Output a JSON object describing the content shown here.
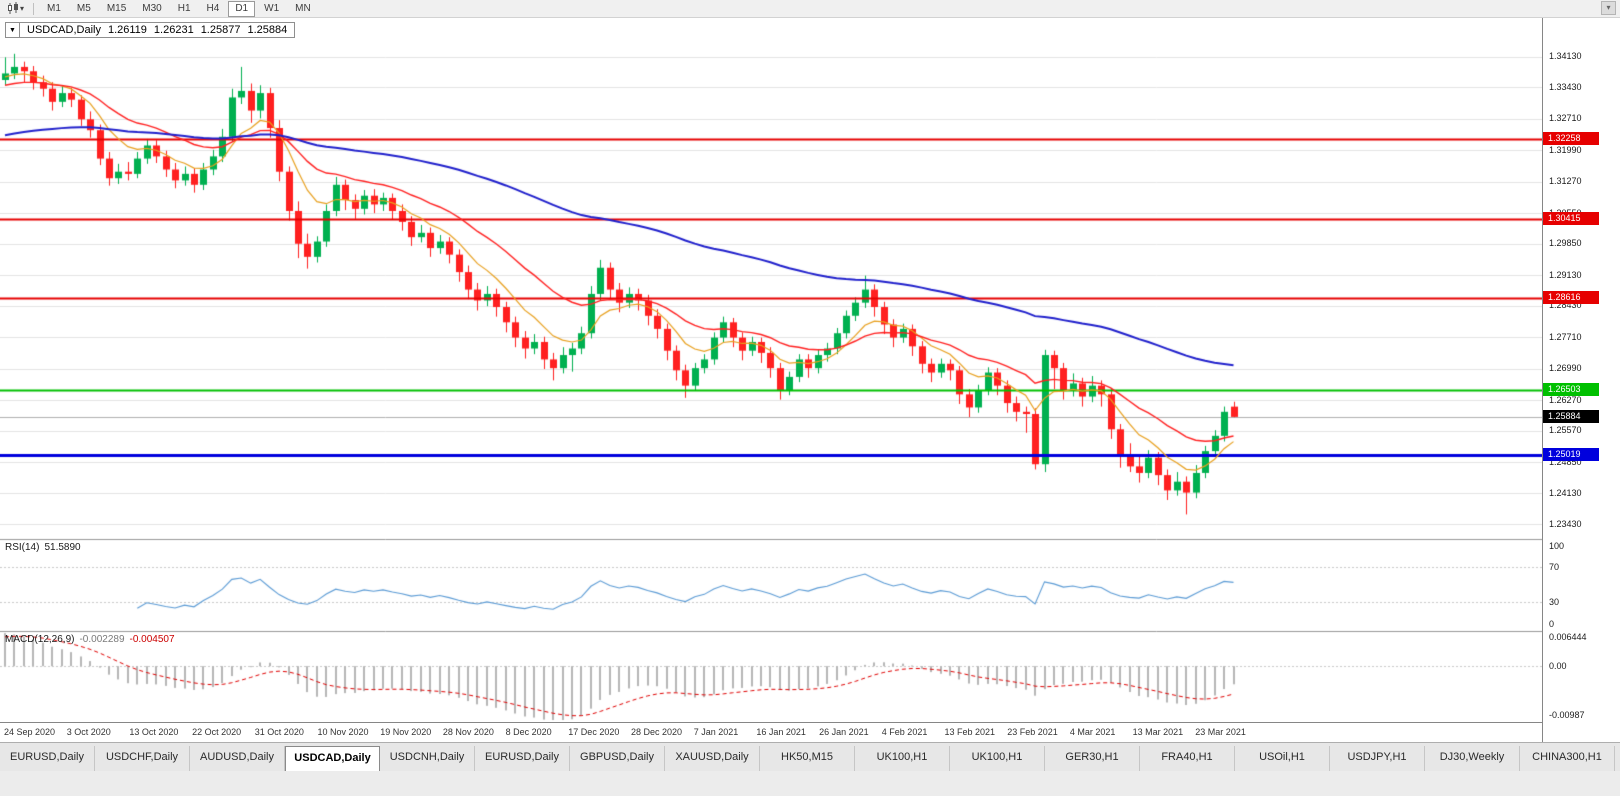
{
  "icons": {
    "dropdown_arrow": "▾",
    "dropdown_arrow_small": "▼",
    "scroll_marker": "▾"
  },
  "toolbar": {
    "timeframes": [
      "M1",
      "M5",
      "M15",
      "M30",
      "H1",
      "H4",
      "D1",
      "W1",
      "MN"
    ],
    "active": "D1"
  },
  "header": {
    "symbol": "USDCAD,Daily",
    "open": "1.26119",
    "high": "1.26231",
    "low": "1.25877",
    "close": "1.25884"
  },
  "panels": {
    "rsi": {
      "name": "RSI(14)",
      "value": "51.5890",
      "levels": [
        "100",
        "70",
        "30",
        "0"
      ]
    },
    "macd": {
      "name": "MACD(12,26,9)",
      "value_main": "-0.002289",
      "value_signal": "-0.004507",
      "axis": [
        "0.006444",
        "0.00",
        "-0.00987"
      ]
    }
  },
  "tabs": {
    "active_index": 3,
    "items": [
      "EURUSD,Daily",
      "USDCHF,Daily",
      "AUDUSD,Daily",
      "USDCAD,Daily",
      "USDCNH,Daily",
      "EURUSD,Daily",
      "GBPUSD,Daily",
      "XAUUSD,Daily",
      "HK50,M15",
      "UK100,H1",
      "UK100,H1",
      "GER30,H1",
      "FRA40,H1",
      "USOil,H1",
      "USDJPY,H1",
      "DJ30,Weekly",
      "CHINA300,H1"
    ]
  },
  "chart_data": {
    "type": "candlestick",
    "title": "USDCAD,Daily",
    "price_range": [
      1.2311,
      1.3502
    ],
    "y_ticks": [
      "1.34130",
      "1.33430",
      "1.32710",
      "1.31990",
      "1.31270",
      "1.30550",
      "1.29850",
      "1.29130",
      "1.28430",
      "1.27710",
      "1.26990",
      "1.26270",
      "1.25570",
      "1.24850",
      "1.24130",
      "1.23430"
    ],
    "x_ticks": [
      "24 Sep 2020",
      "3 Oct 2020",
      "13 Oct 2020",
      "22 Oct 2020",
      "31 Oct 2020",
      "10 Nov 2020",
      "19 Nov 2020",
      "28 Nov 2020",
      "8 Dec 2020",
      "17 Dec 2020",
      "28 Dec 2020",
      "7 Jan 2021",
      "16 Jan 2021",
      "26 Jan 2021",
      "4 Feb 2021",
      "13 Feb 2021",
      "23 Feb 2021",
      "4 Mar 2021",
      "13 Mar 2021",
      "23 Mar 2021"
    ],
    "layout": {
      "x_tick_start": 4,
      "x_tick_spacing": 62.7,
      "candle_start": 5,
      "candle_spacing": 9.45,
      "grid": "horizontal"
    },
    "colors": {
      "up": "#00b050",
      "down": "#ff2020",
      "grid": "#e4e4e4",
      "bg": "#ffffff",
      "current_line": "#b0b0b0"
    },
    "hlines": [
      {
        "value": 1.32258,
        "color": "#e60000",
        "width": 2
      },
      {
        "value": 1.30415,
        "color": "#e60000",
        "width": 2
      },
      {
        "value": 1.28616,
        "color": "#e60000",
        "width": 2
      },
      {
        "value": 1.26503,
        "color": "#00c000",
        "width": 2
      },
      {
        "value": 1.25019,
        "color": "#0000dd",
        "width": 3
      }
    ],
    "current_price": {
      "value": 1.25884,
      "badge_color": "#000000"
    },
    "ma": [
      {
        "name": "MA-fast",
        "period": 8,
        "seed": 1.3365,
        "color": "#e8a01e",
        "width": 1.2
      },
      {
        "name": "MA-mid",
        "period": 20,
        "seed": 1.3345,
        "color": "#ff2020",
        "width": 1.4
      },
      {
        "name": "MA-slow",
        "period": 80,
        "seed": 1.323,
        "color": "#2020cc",
        "width": 2
      }
    ],
    "rsi": {
      "period": 14,
      "color": "#5b9bd5",
      "levels": [
        100,
        70,
        30,
        0
      ],
      "last": 51.589
    },
    "macd": {
      "fast": 12,
      "slow": 26,
      "signal": 9,
      "range": [
        -0.00987,
        0.006444
      ],
      "seed_fast": 1.33645,
      "seed_slow": 1.33,
      "seed_signal": 0.0052,
      "hist_color": "#b6b6b6",
      "signal_color": "#e00000"
    },
    "candles": [
      [
        1.336,
        1.3412,
        1.3348,
        1.3375
      ],
      [
        1.3375,
        1.342,
        1.3362,
        1.339
      ],
      [
        1.339,
        1.3402,
        1.3355,
        1.338
      ],
      [
        1.338,
        1.3392,
        1.3338,
        1.3355
      ],
      [
        1.3355,
        1.337,
        1.3322,
        1.334
      ],
      [
        1.334,
        1.3355,
        1.329,
        1.331
      ],
      [
        1.331,
        1.3348,
        1.3298,
        1.333
      ],
      [
        1.333,
        1.3342,
        1.3298,
        1.3315
      ],
      [
        1.3315,
        1.3325,
        1.3255,
        1.327
      ],
      [
        1.327,
        1.3288,
        1.3228,
        1.3245
      ],
      [
        1.3245,
        1.3258,
        1.3165,
        1.318
      ],
      [
        1.318,
        1.3195,
        1.3118,
        1.3135
      ],
      [
        1.3135,
        1.3168,
        1.3122,
        1.315
      ],
      [
        1.315,
        1.3172,
        1.313,
        1.3145
      ],
      [
        1.3145,
        1.3195,
        1.3135,
        1.318
      ],
      [
        1.318,
        1.3225,
        1.3168,
        1.321
      ],
      [
        1.321,
        1.3222,
        1.317,
        1.3185
      ],
      [
        1.3185,
        1.3198,
        1.3138,
        1.3155
      ],
      [
        1.3155,
        1.317,
        1.3112,
        1.313
      ],
      [
        1.313,
        1.3162,
        1.3118,
        1.3145
      ],
      [
        1.3145,
        1.3158,
        1.3102,
        1.312
      ],
      [
        1.312,
        1.317,
        1.3108,
        1.3155
      ],
      [
        1.3155,
        1.32,
        1.3142,
        1.3185
      ],
      [
        1.3185,
        1.3248,
        1.3172,
        1.323
      ],
      [
        1.323,
        1.334,
        1.3218,
        1.332
      ],
      [
        1.332,
        1.339,
        1.3305,
        1.3335
      ],
      [
        1.3335,
        1.3352,
        1.3262,
        1.329
      ],
      [
        1.329,
        1.3348,
        1.3272,
        1.333
      ],
      [
        1.333,
        1.3342,
        1.3228,
        1.325
      ],
      [
        1.325,
        1.3268,
        1.3128,
        1.315
      ],
      [
        1.315,
        1.3162,
        1.3038,
        1.306
      ],
      [
        1.306,
        1.3082,
        1.2952,
        1.2985
      ],
      [
        1.2985,
        1.3008,
        1.2928,
        1.2955
      ],
      [
        1.2955,
        1.3002,
        1.2942,
        1.299
      ],
      [
        1.299,
        1.3075,
        1.2978,
        1.306
      ],
      [
        1.306,
        1.3138,
        1.3048,
        1.312
      ],
      [
        1.312,
        1.3132,
        1.3062,
        1.3085
      ],
      [
        1.3085,
        1.3098,
        1.3042,
        1.3065
      ],
      [
        1.3065,
        1.3108,
        1.3052,
        1.3095
      ],
      [
        1.3095,
        1.311,
        1.3055,
        1.3075
      ],
      [
        1.3075,
        1.3102,
        1.306,
        1.309
      ],
      [
        1.309,
        1.31,
        1.304,
        1.306
      ],
      [
        1.306,
        1.3075,
        1.3015,
        1.3035
      ],
      [
        1.3035,
        1.3048,
        1.298,
        1.3
      ],
      [
        1.3,
        1.3028,
        1.2988,
        1.301
      ],
      [
        1.301,
        1.3022,
        1.2955,
        1.2975
      ],
      [
        1.2975,
        1.3005,
        1.2962,
        1.299
      ],
      [
        1.299,
        1.3,
        1.294,
        1.296
      ],
      [
        1.296,
        1.2972,
        1.2898,
        1.292
      ],
      [
        1.292,
        1.2935,
        1.2858,
        1.288
      ],
      [
        1.288,
        1.2895,
        1.2832,
        1.2855
      ],
      [
        1.2855,
        1.2888,
        1.2842,
        1.287
      ],
      [
        1.287,
        1.2882,
        1.2818,
        1.284
      ],
      [
        1.284,
        1.2852,
        1.2782,
        1.2805
      ],
      [
        1.2805,
        1.2818,
        1.2748,
        1.277
      ],
      [
        1.277,
        1.2785,
        1.2722,
        1.2745
      ],
      [
        1.2745,
        1.2778,
        1.2732,
        1.276
      ],
      [
        1.276,
        1.2772,
        1.2698,
        1.272
      ],
      [
        1.272,
        1.2735,
        1.2672,
        1.27
      ],
      [
        1.27,
        1.2748,
        1.2688,
        1.273
      ],
      [
        1.273,
        1.2758,
        1.2692,
        1.2745
      ],
      [
        1.2745,
        1.2795,
        1.2732,
        1.278
      ],
      [
        1.278,
        1.2888,
        1.2768,
        1.287
      ],
      [
        1.287,
        1.2948,
        1.2855,
        1.293
      ],
      [
        1.293,
        1.2942,
        1.2858,
        1.288
      ],
      [
        1.288,
        1.2895,
        1.2828,
        1.285
      ],
      [
        1.285,
        1.2885,
        1.2838,
        1.287
      ],
      [
        1.287,
        1.2882,
        1.2832,
        1.2855
      ],
      [
        1.2855,
        1.2868,
        1.2798,
        1.282
      ],
      [
        1.282,
        1.2835,
        1.2768,
        1.279
      ],
      [
        1.279,
        1.2802,
        1.2718,
        1.274
      ],
      [
        1.274,
        1.2752,
        1.2672,
        1.2695
      ],
      [
        1.2695,
        1.2708,
        1.2632,
        1.266
      ],
      [
        1.266,
        1.2712,
        1.2648,
        1.27
      ],
      [
        1.27,
        1.2732,
        1.2688,
        1.272
      ],
      [
        1.272,
        1.2782,
        1.2708,
        1.277
      ],
      [
        1.277,
        1.2818,
        1.2758,
        1.2805
      ],
      [
        1.2805,
        1.2815,
        1.2748,
        1.277
      ],
      [
        1.277,
        1.2782,
        1.2718,
        1.274
      ],
      [
        1.274,
        1.2772,
        1.2728,
        1.276
      ],
      [
        1.276,
        1.277,
        1.2712,
        1.2735
      ],
      [
        1.2735,
        1.2748,
        1.2678,
        1.27
      ],
      [
        1.27,
        1.2712,
        1.2628,
        1.265
      ],
      [
        1.265,
        1.2692,
        1.2638,
        1.268
      ],
      [
        1.268,
        1.2732,
        1.2668,
        1.272
      ],
      [
        1.272,
        1.2732,
        1.2678,
        1.27
      ],
      [
        1.27,
        1.2742,
        1.2688,
        1.273
      ],
      [
        1.273,
        1.2758,
        1.2715,
        1.2745
      ],
      [
        1.2745,
        1.2792,
        1.2732,
        1.278
      ],
      [
        1.278,
        1.2832,
        1.2768,
        1.282
      ],
      [
        1.282,
        1.2862,
        1.2808,
        1.285
      ],
      [
        1.285,
        1.2912,
        1.2838,
        1.288
      ],
      [
        1.288,
        1.2892,
        1.2818,
        1.284
      ],
      [
        1.284,
        1.2852,
        1.2778,
        1.28
      ],
      [
        1.28,
        1.2812,
        1.2748,
        1.277
      ],
      [
        1.277,
        1.2802,
        1.2758,
        1.279
      ],
      [
        1.279,
        1.28,
        1.2728,
        1.275
      ],
      [
        1.275,
        1.2762,
        1.2688,
        1.271
      ],
      [
        1.271,
        1.2722,
        1.2668,
        1.269
      ],
      [
        1.269,
        1.2722,
        1.2678,
        1.271
      ],
      [
        1.271,
        1.272,
        1.2672,
        1.2695
      ],
      [
        1.2695,
        1.2705,
        1.2618,
        1.264
      ],
      [
        1.264,
        1.2652,
        1.2588,
        1.261
      ],
      [
        1.261,
        1.2662,
        1.2598,
        1.265
      ],
      [
        1.265,
        1.2702,
        1.2638,
        1.269
      ],
      [
        1.269,
        1.27,
        1.2638,
        1.266
      ],
      [
        1.266,
        1.2672,
        1.2598,
        1.262
      ],
      [
        1.262,
        1.2635,
        1.2578,
        1.26
      ],
      [
        1.26,
        1.2612,
        1.2552,
        1.2595
      ],
      [
        1.2595,
        1.2608,
        1.2468,
        1.248
      ],
      [
        1.248,
        1.2742,
        1.2462,
        1.273
      ],
      [
        1.273,
        1.274,
        1.2652,
        1.27
      ],
      [
        1.27,
        1.2712,
        1.2628,
        1.265
      ],
      [
        1.265,
        1.2688,
        1.2635,
        1.2665
      ],
      [
        1.2665,
        1.2678,
        1.2612,
        1.2635
      ],
      [
        1.2635,
        1.2682,
        1.2622,
        1.266
      ],
      [
        1.266,
        1.2672,
        1.2612,
        1.264
      ],
      [
        1.264,
        1.2652,
        1.2538,
        1.256
      ],
      [
        1.256,
        1.2572,
        1.2472,
        1.25
      ],
      [
        1.25,
        1.2528,
        1.2462,
        1.2475
      ],
      [
        1.2475,
        1.2498,
        1.2438,
        1.246
      ],
      [
        1.246,
        1.2512,
        1.2448,
        1.2495
      ],
      [
        1.2495,
        1.2508,
        1.2432,
        1.2455
      ],
      [
        1.2455,
        1.2468,
        1.2398,
        1.242
      ],
      [
        1.242,
        1.2462,
        1.2408,
        1.244
      ],
      [
        1.244,
        1.2452,
        1.2365,
        1.2415
      ],
      [
        1.2415,
        1.2478,
        1.2402,
        1.246
      ],
      [
        1.246,
        1.2522,
        1.2448,
        1.251
      ],
      [
        1.251,
        1.2558,
        1.2498,
        1.2545
      ],
      [
        1.2545,
        1.2612,
        1.2532,
        1.26
      ],
      [
        1.26119,
        1.26231,
        1.25877,
        1.25884
      ]
    ]
  }
}
